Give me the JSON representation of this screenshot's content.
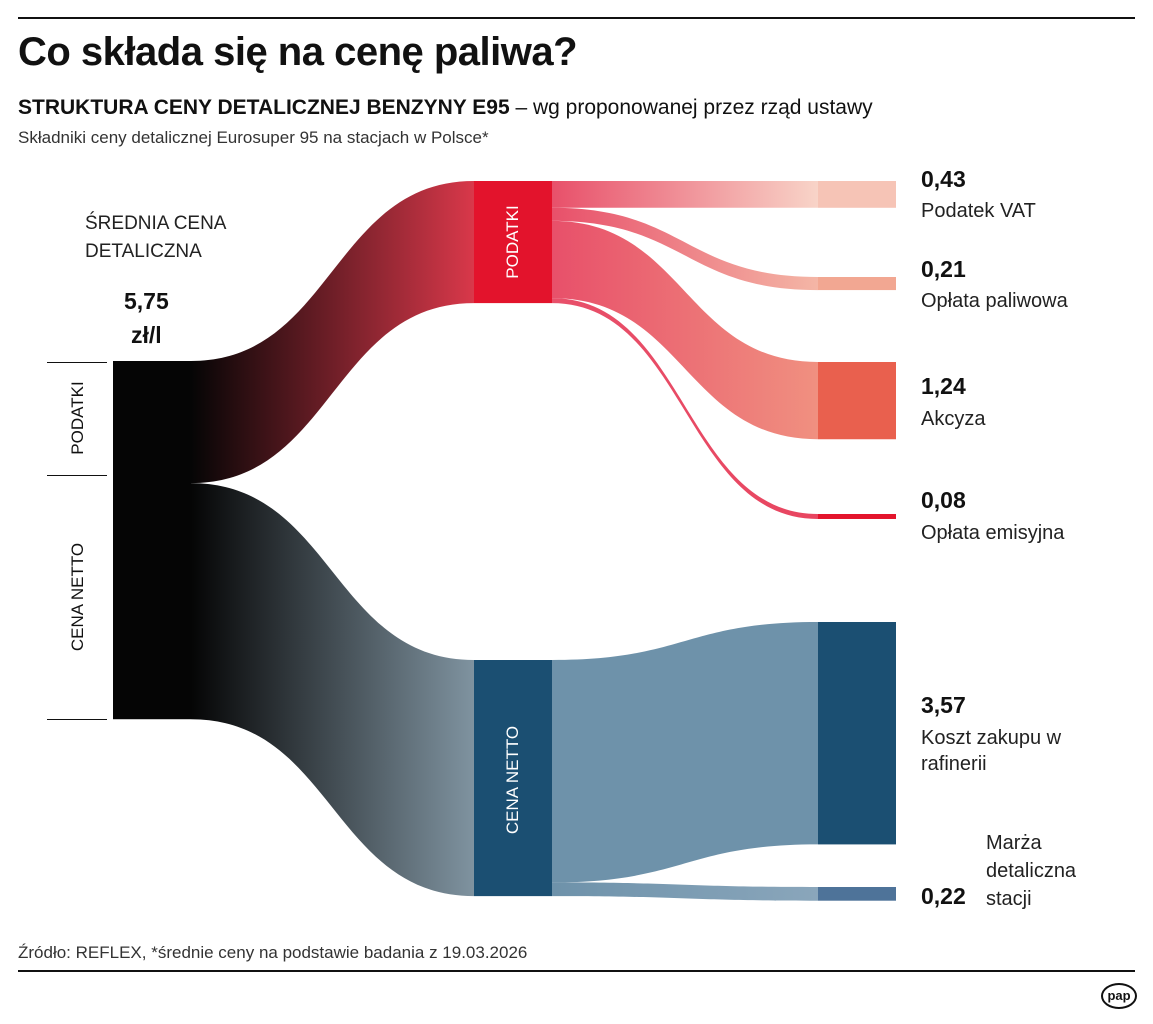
{
  "title": "Co składa się na cenę paliwa?",
  "subtitle_bold": "STRUKTURA CENY DETALICZNEJ BENZYNY E95",
  "subtitle_rest": " – wg proponowanej przez rząd ustawy",
  "description": "Składniki ceny detalicznej Eurosuper 95 na stacjach w Polsce*",
  "source": "Źródło: REFLEX, *średnie ceny na podstawie badania z 19.03.2026",
  "logo": "pap",
  "left": {
    "heading_line1": "ŚREDNIA CENA",
    "heading_line2": "DETALICZNA",
    "price": "5,75",
    "unit": "zł/l",
    "bracket_taxes": "PODATKI",
    "bracket_net": "CENA NETTO"
  },
  "middle": {
    "taxes": "PODATKI",
    "net": "CENA NETTO"
  },
  "chart_data": {
    "type": "sankey",
    "unit": "zł/l",
    "nodes": [
      {
        "id": "total",
        "value": 5.75,
        "color": "#050505"
      },
      {
        "id": "taxes",
        "label": "PODATKI",
        "value": 1.96,
        "color": "#e3132c"
      },
      {
        "id": "net",
        "label": "CENA NETTO",
        "value": 3.79,
        "color": "#1b4f72"
      },
      {
        "id": "vat",
        "label": "Podatek VAT",
        "value_label": "0,43",
        "value": 0.43,
        "color": "#f6c4b6"
      },
      {
        "id": "fuel_fee",
        "label": "Opłata paliwowa",
        "value_label": "0,21",
        "value": 0.21,
        "color": "#f2a792"
      },
      {
        "id": "excise",
        "label": "Akcyza",
        "value_label": "1,24",
        "value": 1.24,
        "color": "#e9604e"
      },
      {
        "id": "emission",
        "label": "Opłata emisyjna",
        "value_label": "0,08",
        "value": 0.08,
        "color": "#e3142c"
      },
      {
        "id": "refinery",
        "label": "Koszt zakupu w rafinerii",
        "value_label": "3,57",
        "value": 3.57,
        "color": "#1b4f72"
      },
      {
        "id": "margin",
        "label": "Marża detaliczna stacji",
        "value_label": "0,22",
        "value": 0.22,
        "color": "#4e7399"
      }
    ],
    "links": [
      {
        "source": "total",
        "target": "taxes",
        "value": 1.96
      },
      {
        "source": "total",
        "target": "net",
        "value": 3.79
      },
      {
        "source": "taxes",
        "target": "vat",
        "value": 0.43
      },
      {
        "source": "taxes",
        "target": "fuel_fee",
        "value": 0.21
      },
      {
        "source": "taxes",
        "target": "excise",
        "value": 1.24
      },
      {
        "source": "taxes",
        "target": "emission",
        "value": 0.08
      },
      {
        "source": "net",
        "target": "refinery",
        "value": 3.57
      },
      {
        "source": "net",
        "target": "margin",
        "value": 0.22
      }
    ]
  }
}
